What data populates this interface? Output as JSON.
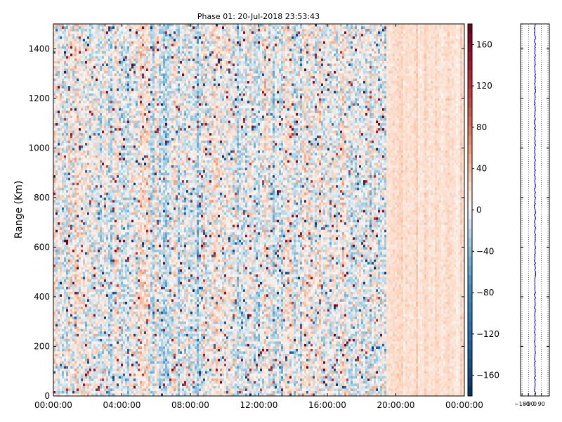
{
  "chart_data": [
    {
      "type": "heatmap",
      "title": "Phase 01: 20-Jul-2018 23:53:43",
      "xlabel": "",
      "ylabel": "Range (Km)",
      "x_tick_labels": [
        "00:00:00",
        "04:00:00",
        "08:00:00",
        "12:00:00",
        "16:00:00",
        "20:00:00",
        "00:00:00"
      ],
      "x_range_hours": [
        0,
        24
      ],
      "y_ticks": [
        0,
        200,
        400,
        600,
        800,
        1000,
        1200,
        1400
      ],
      "ylim": [
        0,
        1500
      ],
      "colorbar": {
        "colormap": "RdBu_r",
        "range": [
          -180,
          180
        ],
        "ticks": [
          -160,
          -120,
          -80,
          -40,
          0,
          40,
          80,
          120,
          160
        ]
      },
      "description_regions": [
        {
          "x_hours": [
            0,
            19.4
          ],
          "pattern": "noisy phase values ±180",
          "mean": 0
        },
        {
          "x_hours": [
            19.4,
            23.8
          ],
          "pattern": "smooth, slightly positive",
          "mean": 20
        }
      ]
    },
    {
      "type": "line",
      "xlabel": "",
      "ylabel": "",
      "x_tick_labels": [
        "−180",
        "−90",
        "0",
        "90"
      ],
      "xlim": [
        -200,
        200
      ],
      "ylim": [
        0,
        1500
      ],
      "series": [
        {
          "color": "#0000cc",
          "description": "mean phase vs range, near 0",
          "values_range": [
            -10,
            10
          ]
        }
      ]
    }
  ],
  "colors": {
    "axes": "#000000",
    "trace": "#0000cc"
  }
}
